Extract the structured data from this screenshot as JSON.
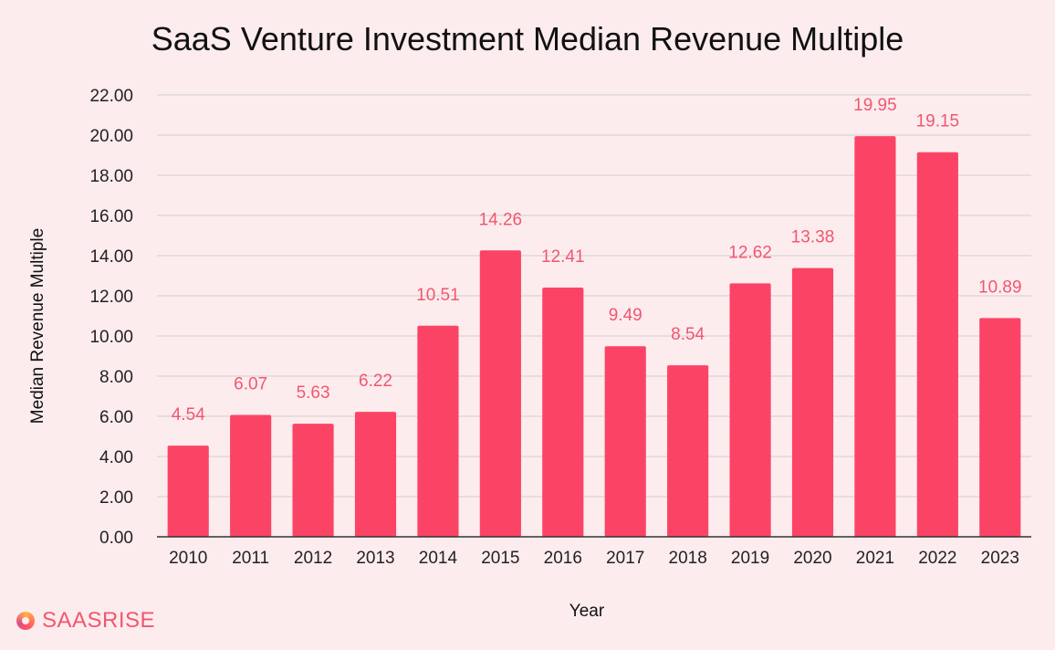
{
  "colors": {
    "background": "#fdecee",
    "bar": "#fb4465",
    "data_label": "#f2566f",
    "gridline": "#cfcfcf",
    "brand": "#f2566f"
  },
  "brand": {
    "name": "SAASRISE",
    "icon": "saasrise-logo-icon"
  },
  "chart_data": {
    "type": "bar",
    "title": "SaaS Venture Investment Median Revenue Multiple",
    "xlabel": "Year",
    "ylabel": "Median Revenue Multiple",
    "categories": [
      "2010",
      "2011",
      "2012",
      "2013",
      "2014",
      "2015",
      "2016",
      "2017",
      "2018",
      "2019",
      "2020",
      "2021",
      "2022",
      "2023"
    ],
    "values": [
      4.54,
      6.07,
      5.63,
      6.22,
      10.51,
      14.26,
      12.41,
      9.49,
      8.54,
      12.62,
      13.38,
      19.95,
      19.15,
      10.89
    ],
    "data_labels": [
      "4.54",
      "6.07",
      "5.63",
      "6.22",
      "10.51",
      "14.26",
      "12.41",
      "9.49",
      "8.54",
      "12.62",
      "13.38",
      "19.95",
      "19.15",
      "10.89"
    ],
    "ylim": [
      0,
      22
    ],
    "yticks": [
      "0.00",
      "2.00",
      "4.00",
      "6.00",
      "8.00",
      "10.00",
      "12.00",
      "14.00",
      "16.00",
      "18.00",
      "20.00",
      "22.00"
    ],
    "grid": true,
    "legend": "none"
  }
}
